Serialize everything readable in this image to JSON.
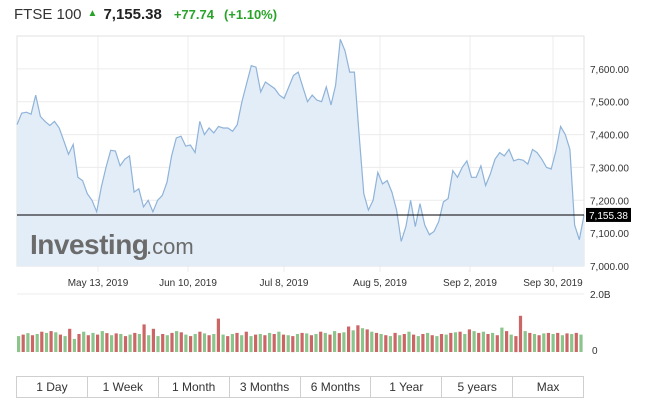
{
  "header": {
    "index_name": "FTSE 100",
    "last": "7,155.38",
    "change": "+77.74",
    "change_pct": "(+1.10%)",
    "arrow_icon": "up-triangle-icon",
    "up_color": "#29a329"
  },
  "watermark": {
    "brand": "Investing",
    "suffix": ".com"
  },
  "ranges": [
    "1 Day",
    "1 Week",
    "1 Month",
    "3 Months",
    "6 Months",
    "1 Year",
    "5 years",
    "Max"
  ],
  "chart_data": {
    "type": "area",
    "x_tick_labels": [
      "May 13, 2019",
      "Jun 10, 2019",
      "Jul 8, 2019",
      "Aug 5, 2019",
      "Sep 2, 2019",
      "Sep 30, 2019"
    ],
    "y_tick_labels": [
      "7,600.00",
      "7,500.00",
      "7,400.00",
      "7,300.00",
      "7,200.00",
      "7,100.00",
      "7,000.00"
    ],
    "y_ticks": [
      7600,
      7500,
      7400,
      7300,
      7200,
      7100,
      7000
    ],
    "ylim": [
      7000,
      7700
    ],
    "current_value": 7155.38,
    "current_label": "7,155.38",
    "line_color": "#8fb3d9",
    "fill_color": "#e3edf7",
    "values": [
      7430,
      7465,
      7468,
      7462,
      7520,
      7455,
      7440,
      7428,
      7440,
      7420,
      7380,
      7340,
      7370,
      7270,
      7260,
      7220,
      7200,
      7165,
      7240,
      7300,
      7352,
      7350,
      7305,
      7325,
      7335,
      7225,
      7235,
      7180,
      7200,
      7165,
      7200,
      7215,
      7255,
      7335,
      7390,
      7395,
      7365,
      7368,
      7345,
      7440,
      7400,
      7420,
      7405,
      7425,
      7420,
      7420,
      7410,
      7430,
      7500,
      7555,
      7610,
      7605,
      7530,
      7560,
      7550,
      7540,
      7520,
      7510,
      7545,
      7580,
      7590,
      7545,
      7500,
      7520,
      7505,
      7500,
      7545,
      7490,
      7550,
      7690,
      7655,
      7590,
      7590,
      7400,
      7220,
      7170,
      7200,
      7285,
      7250,
      7260,
      7225,
      7170,
      7075,
      7120,
      7200,
      7120,
      7190,
      7125,
      7095,
      7105,
      7135,
      7195,
      7205,
      7290,
      7270,
      7300,
      7320,
      7270,
      7270,
      7305,
      7245,
      7280,
      7325,
      7345,
      7335,
      7355,
      7320,
      7325,
      7322,
      7310,
      7355,
      7345,
      7325,
      7300,
      7295,
      7350,
      7425,
      7400,
      7355,
      7125,
      7080,
      7155
    ],
    "volume_axis_label": "2.0B",
    "volume_zero_label": "0",
    "volume_max": 2000000000,
    "up_volume_color": "#8cc58c",
    "down_volume_color": "#cc6666",
    "volume_bars": [
      {
        "v": 0.55,
        "up": true
      },
      {
        "v": 0.6,
        "up": false
      },
      {
        "v": 0.65,
        "up": true
      },
      {
        "v": 0.58,
        "up": false
      },
      {
        "v": 0.62,
        "up": true
      },
      {
        "v": 0.7,
        "up": false
      },
      {
        "v": 0.66,
        "up": true
      },
      {
        "v": 0.72,
        "up": false
      },
      {
        "v": 0.68,
        "up": true
      },
      {
        "v": 0.6,
        "up": false
      },
      {
        "v": 0.55,
        "up": true
      },
      {
        "v": 0.8,
        "up": false
      },
      {
        "v": 0.45,
        "up": true
      },
      {
        "v": 0.62,
        "up": false
      },
      {
        "v": 0.7,
        "up": true
      },
      {
        "v": 0.58,
        "up": false
      },
      {
        "v": 0.66,
        "up": true
      },
      {
        "v": 0.6,
        "up": false
      },
      {
        "v": 0.72,
        "up": true
      },
      {
        "v": 0.65,
        "up": false
      },
      {
        "v": 0.58,
        "up": true
      },
      {
        "v": 0.64,
        "up": false
      },
      {
        "v": 0.62,
        "up": true
      },
      {
        "v": 0.55,
        "up": false
      },
      {
        "v": 0.6,
        "up": true
      },
      {
        "v": 0.66,
        "up": false
      },
      {
        "v": 0.62,
        "up": true
      },
      {
        "v": 0.95,
        "up": false
      },
      {
        "v": 0.58,
        "up": true
      },
      {
        "v": 0.8,
        "up": false
      },
      {
        "v": 0.55,
        "up": true
      },
      {
        "v": 0.62,
        "up": false
      },
      {
        "v": 0.58,
        "up": true
      },
      {
        "v": 0.66,
        "up": false
      },
      {
        "v": 0.72,
        "up": true
      },
      {
        "v": 0.68,
        "up": false
      },
      {
        "v": 0.6,
        "up": true
      },
      {
        "v": 0.55,
        "up": false
      },
      {
        "v": 0.62,
        "up": true
      },
      {
        "v": 0.7,
        "up": false
      },
      {
        "v": 0.64,
        "up": true
      },
      {
        "v": 0.58,
        "up": false
      },
      {
        "v": 0.62,
        "up": true
      },
      {
        "v": 1.15,
        "up": false
      },
      {
        "v": 0.6,
        "up": true
      },
      {
        "v": 0.55,
        "up": false
      },
      {
        "v": 0.62,
        "up": true
      },
      {
        "v": 0.66,
        "up": false
      },
      {
        "v": 0.58,
        "up": true
      },
      {
        "v": 0.7,
        "up": false
      },
      {
        "v": 0.55,
        "up": true
      },
      {
        "v": 0.6,
        "up": false
      },
      {
        "v": 0.62,
        "up": true
      },
      {
        "v": 0.58,
        "up": false
      },
      {
        "v": 0.66,
        "up": true
      },
      {
        "v": 0.62,
        "up": false
      },
      {
        "v": 0.7,
        "up": true
      },
      {
        "v": 0.6,
        "up": false
      },
      {
        "v": 0.58,
        "up": true
      },
      {
        "v": 0.55,
        "up": false
      },
      {
        "v": 0.62,
        "up": true
      },
      {
        "v": 0.66,
        "up": false
      },
      {
        "v": 0.64,
        "up": true
      },
      {
        "v": 0.58,
        "up": false
      },
      {
        "v": 0.62,
        "up": true
      },
      {
        "v": 0.7,
        "up": false
      },
      {
        "v": 0.66,
        "up": true
      },
      {
        "v": 0.6,
        "up": false
      },
      {
        "v": 0.72,
        "up": true
      },
      {
        "v": 0.65,
        "up": false
      },
      {
        "v": 0.68,
        "up": true
      },
      {
        "v": 0.88,
        "up": false
      },
      {
        "v": 0.75,
        "up": true
      },
      {
        "v": 0.92,
        "up": false
      },
      {
        "v": 0.82,
        "up": true
      },
      {
        "v": 0.78,
        "up": false
      },
      {
        "v": 0.7,
        "up": true
      },
      {
        "v": 0.66,
        "up": false
      },
      {
        "v": 0.62,
        "up": true
      },
      {
        "v": 0.58,
        "up": false
      },
      {
        "v": 0.55,
        "up": true
      },
      {
        "v": 0.66,
        "up": false
      },
      {
        "v": 0.58,
        "up": true
      },
      {
        "v": 0.62,
        "up": false
      },
      {
        "v": 0.7,
        "up": true
      },
      {
        "v": 0.6,
        "up": false
      },
      {
        "v": 0.55,
        "up": true
      },
      {
        "v": 0.62,
        "up": false
      },
      {
        "v": 0.66,
        "up": true
      },
      {
        "v": 0.58,
        "up": false
      },
      {
        "v": 0.55,
        "up": true
      },
      {
        "v": 0.62,
        "up": false
      },
      {
        "v": 0.6,
        "up": true
      },
      {
        "v": 0.66,
        "up": false
      },
      {
        "v": 0.68,
        "up": true
      },
      {
        "v": 0.7,
        "up": false
      },
      {
        "v": 0.62,
        "up": true
      },
      {
        "v": 0.78,
        "up": false
      },
      {
        "v": 0.72,
        "up": true
      },
      {
        "v": 0.66,
        "up": false
      },
      {
        "v": 0.7,
        "up": true
      },
      {
        "v": 0.62,
        "up": false
      },
      {
        "v": 0.66,
        "up": true
      },
      {
        "v": 0.58,
        "up": false
      },
      {
        "v": 0.84,
        "up": true
      },
      {
        "v": 0.72,
        "up": false
      },
      {
        "v": 0.6,
        "up": true
      },
      {
        "v": 0.55,
        "up": false
      },
      {
        "v": 1.25,
        "up": false
      },
      {
        "v": 0.72,
        "up": true
      },
      {
        "v": 0.66,
        "up": false
      },
      {
        "v": 0.62,
        "up": true
      },
      {
        "v": 0.58,
        "up": false
      },
      {
        "v": 0.64,
        "up": true
      },
      {
        "v": 0.66,
        "up": false
      },
      {
        "v": 0.62,
        "up": true
      },
      {
        "v": 0.66,
        "up": false
      },
      {
        "v": 0.58,
        "up": true
      },
      {
        "v": 0.64,
        "up": false
      },
      {
        "v": 0.62,
        "up": true
      },
      {
        "v": 0.66,
        "up": false
      },
      {
        "v": 0.6,
        "up": true
      }
    ]
  }
}
